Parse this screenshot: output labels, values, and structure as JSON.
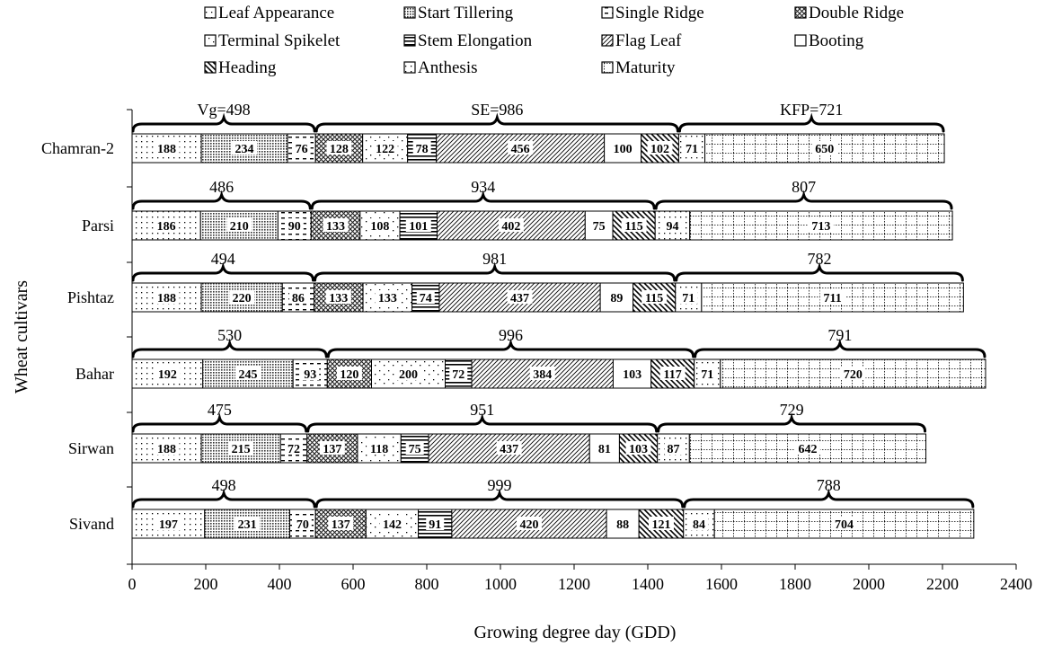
{
  "chart_data": {
    "type": "bar",
    "orientation": "horizontal",
    "stacked": true,
    "title": "",
    "xlabel": "Growing degree day (GDD)",
    "ylabel": "Wheat cultivars",
    "xlim": [
      0,
      2400
    ],
    "xticks": [
      0,
      200,
      400,
      600,
      800,
      1000,
      1200,
      1400,
      1600,
      1800,
      2000,
      2200,
      2400
    ],
    "grid": false,
    "legend_position": "top",
    "categories": [
      "Chamran-2",
      "Parsi",
      "Pishtaz",
      "Bahar",
      "Sirwan",
      "Sivand"
    ],
    "series": [
      {
        "name": "Leaf Appearance",
        "pattern": "dots-sparse",
        "values": [
          188,
          186,
          188,
          192,
          188,
          197
        ]
      },
      {
        "name": "Start Tillering",
        "pattern": "dots-dense",
        "values": [
          234,
          210,
          220,
          245,
          215,
          231
        ]
      },
      {
        "name": "Single Ridge",
        "pattern": "dashes",
        "values": [
          76,
          90,
          86,
          93,
          72,
          70
        ]
      },
      {
        "name": "Double Ridge",
        "pattern": "crosshatch",
        "values": [
          128,
          133,
          133,
          120,
          137,
          137
        ]
      },
      {
        "name": "Terminal Spikelet",
        "pattern": "dots-scattered",
        "values": [
          122,
          108,
          133,
          200,
          118,
          142
        ]
      },
      {
        "name": "Stem Elongation",
        "pattern": "horizontal-lines",
        "values": [
          78,
          101,
          74,
          72,
          75,
          91
        ]
      },
      {
        "name": "Flag Leaf",
        "pattern": "diagonal-lines",
        "values": [
          456,
          402,
          437,
          384,
          437,
          420
        ]
      },
      {
        "name": "Booting",
        "pattern": "blank",
        "values": [
          100,
          75,
          89,
          103,
          81,
          88
        ]
      },
      {
        "name": "Heading",
        "pattern": "wide-diagonal",
        "values": [
          102,
          115,
          115,
          117,
          103,
          121
        ]
      },
      {
        "name": "Anthesis",
        "pattern": "dots-sparse",
        "values": [
          71,
          94,
          71,
          71,
          87,
          84
        ]
      },
      {
        "name": "Maturity",
        "pattern": "grid",
        "values": [
          650,
          713,
          711,
          720,
          642,
          704
        ]
      }
    ],
    "bracket_labels": [
      {
        "cultivar": "Chamran-2",
        "values": [
          "Vg=498",
          "SE=986",
          "KFP=721"
        ]
      },
      {
        "cultivar": "Parsi",
        "values": [
          "486",
          "934",
          "807"
        ]
      },
      {
        "cultivar": "Pishtaz",
        "values": [
          "494",
          "981",
          "782"
        ]
      },
      {
        "cultivar": "Bahar",
        "values": [
          "530",
          "996",
          "791"
        ]
      },
      {
        "cultivar": "Sirwan",
        "values": [
          "475",
          "951",
          "729"
        ]
      },
      {
        "cultivar": "Sivand",
        "values": [
          "498",
          "999",
          "788"
        ]
      }
    ]
  }
}
